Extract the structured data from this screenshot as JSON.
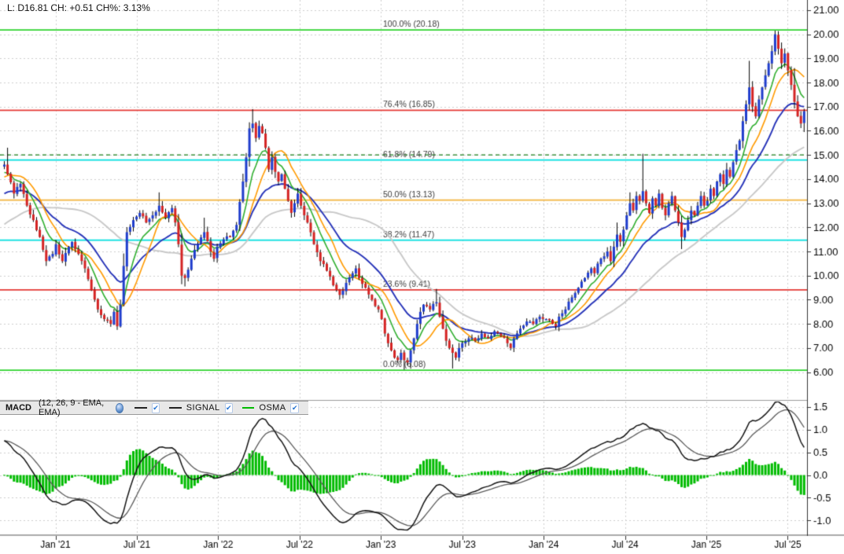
{
  "quote_bar": {
    "text": "L: D16.81 CH: +0.51 CH%: 3.13%",
    "last": "16.81",
    "change": "+0.51",
    "change_pct": "3.13%"
  },
  "indicator_bar": {
    "name": "MACD",
    "params": "(12, 26, 9 - EMA, EMA)",
    "settings_icon": "globe-icon",
    "check_glyph": "✔",
    "toggles": [
      {
        "label": "",
        "checked": true,
        "sample_color": "#222222"
      },
      {
        "label": "SIGNAL",
        "checked": true,
        "sample_color": "#222222"
      },
      {
        "label": "OSMA",
        "checked": true,
        "sample_color": "#00bb00"
      }
    ]
  },
  "price_axis": {
    "ticks": [
      "21.00",
      "20.00",
      "19.00",
      "18.00",
      "17.00",
      "16.00",
      "15.00",
      "14.00",
      "13.00",
      "12.00",
      "11.00",
      "10.00",
      "9.00",
      "8.00",
      "7.00",
      "6.00"
    ]
  },
  "macd_axis": {
    "ticks": [
      "1.5",
      "1.0",
      "0.5",
      "0.0",
      "-0.5",
      "-1.0"
    ]
  },
  "time_axis": {
    "ticks": [
      "Jan '21",
      "Jul '21",
      "Jan '22",
      "Jul '22",
      "Jan '23",
      "Jul '23",
      "Jan '24",
      "Jul '24",
      "Jan '25",
      "Jul '25"
    ]
  },
  "fibonacci": {
    "levels": [
      {
        "label": "100.0% (20.18)",
        "pct": "100.0%",
        "price": 20.18,
        "color": "#2fd32f"
      },
      {
        "label": "76.4% (16.85)",
        "pct": "76.4%",
        "price": 16.85,
        "color": "#e53935"
      },
      {
        "label": "61.8% (14.79)",
        "pct": "61.8%",
        "price": 14.79,
        "color": "#00dede"
      },
      {
        "label": "50.0% (13.13)",
        "pct": "50.0%",
        "price": 13.13,
        "color": "#f2b33d"
      },
      {
        "label": "38.2% (11.47)",
        "pct": "38.2%",
        "price": 11.47,
        "color": "#00dede"
      },
      {
        "label": "23.6% (9.41)",
        "pct": "23.6%",
        "price": 9.41,
        "color": "#e53935"
      },
      {
        "label": "0.0% (6.08)",
        "pct": "0.0%",
        "price": 6.08,
        "color": "#2fd32f"
      }
    ]
  },
  "levels": {
    "horizontal_line": {
      "price": 15.0,
      "color": "#1c801c",
      "style": "dashed"
    }
  },
  "chart_data": {
    "type": "candlestick",
    "timeframe": "weekly",
    "x_range": [
      "Oct 2020",
      "Sep 2025"
    ],
    "price_ylim": [
      4.88,
      21.42
    ],
    "macd_ylim": [
      -1.29,
      1.62
    ],
    "last_close": 16.81,
    "candles_count": 249,
    "candle_up_color": "#1e3ccc",
    "candle_down_color": "#d42222",
    "wick_color": "#000000",
    "close_keypoints": [
      [
        -45,
        9.8
      ],
      [
        -35,
        10.5
      ],
      [
        -25,
        11.6
      ],
      [
        -15,
        13.0
      ],
      [
        -5,
        14.2
      ],
      [
        0,
        14.6
      ],
      [
        1,
        14.2
      ],
      [
        3,
        13.4
      ],
      [
        5,
        13.8
      ],
      [
        7,
        12.9
      ],
      [
        9,
        12.3
      ],
      [
        11,
        11.6
      ],
      [
        13,
        10.6
      ],
      [
        15,
        10.9
      ],
      [
        16,
        11.3
      ],
      [
        18,
        10.6
      ],
      [
        20,
        11.2
      ],
      [
        21,
        11.4
      ],
      [
        23,
        10.9
      ],
      [
        25,
        10.3
      ],
      [
        27,
        9.4
      ],
      [
        29,
        8.6
      ],
      [
        31,
        8.2
      ],
      [
        33,
        8.0
      ],
      [
        34,
        8.5
      ],
      [
        35,
        7.9
      ],
      [
        36,
        8.8
      ],
      [
        37,
        10.4
      ],
      [
        38,
        11.8
      ],
      [
        40,
        12.3
      ],
      [
        42,
        12.6
      ],
      [
        44,
        12.2
      ],
      [
        46,
        12.5
      ],
      [
        48,
        12.9
      ],
      [
        50,
        12.4
      ],
      [
        52,
        12.8
      ],
      [
        53,
        12.2
      ],
      [
        54,
        11.3
      ],
      [
        55,
        10.0
      ],
      [
        56,
        9.9
      ],
      [
        58,
        10.7
      ],
      [
        60,
        11.3
      ],
      [
        62,
        11.8
      ],
      [
        64,
        11.0
      ],
      [
        65,
        10.7
      ],
      [
        66,
        11.2
      ],
      [
        68,
        11.5
      ],
      [
        70,
        11.6
      ],
      [
        72,
        12.1
      ],
      [
        74,
        13.9
      ],
      [
        75,
        14.9
      ],
      [
        76,
        16.1
      ],
      [
        77,
        16.3
      ],
      [
        78,
        15.7
      ],
      [
        79,
        16.2
      ],
      [
        80,
        15.9
      ],
      [
        81,
        15.3
      ],
      [
        82,
        14.4
      ],
      [
        83,
        14.9
      ],
      [
        84,
        14.3
      ],
      [
        85,
        13.9
      ],
      [
        86,
        14.2
      ],
      [
        87,
        13.6
      ],
      [
        88,
        13.1
      ],
      [
        89,
        12.6
      ],
      [
        90,
        13.0
      ],
      [
        91,
        13.4
      ],
      [
        92,
        12.9
      ],
      [
        94,
        12.2
      ],
      [
        96,
        11.3
      ],
      [
        98,
        10.6
      ],
      [
        100,
        10.2
      ],
      [
        102,
        9.6
      ],
      [
        104,
        9.2
      ],
      [
        106,
        9.7
      ],
      [
        108,
        10.1
      ],
      [
        109,
        10.3
      ],
      [
        110,
        9.9
      ],
      [
        112,
        9.5
      ],
      [
        114,
        9.0
      ],
      [
        116,
        8.6
      ],
      [
        117,
        8.2
      ],
      [
        118,
        7.6
      ],
      [
        119,
        7.2
      ],
      [
        120,
        6.9
      ],
      [
        121,
        6.6
      ],
      [
        122,
        6.5
      ],
      [
        123,
        6.8
      ],
      [
        124,
        6.5
      ],
      [
        125,
        6.4
      ],
      [
        126,
        6.9
      ],
      [
        127,
        7.4
      ],
      [
        128,
        8.0
      ],
      [
        129,
        8.5
      ],
      [
        130,
        8.8
      ],
      [
        132,
        8.6
      ],
      [
        134,
        8.9
      ],
      [
        135,
        8.3
      ],
      [
        136,
        7.8
      ],
      [
        137,
        7.3
      ],
      [
        138,
        7.0
      ],
      [
        139,
        6.8
      ],
      [
        140,
        6.6
      ],
      [
        141,
        7.0
      ],
      [
        142,
        7.2
      ],
      [
        144,
        7.4
      ],
      [
        146,
        7.3
      ],
      [
        148,
        7.6
      ],
      [
        150,
        7.4
      ],
      [
        152,
        7.7
      ],
      [
        154,
        7.5
      ],
      [
        156,
        7.2
      ],
      [
        157,
        7.0
      ],
      [
        158,
        7.4
      ],
      [
        160,
        7.8
      ],
      [
        162,
        8.1
      ],
      [
        164,
        8.0
      ],
      [
        166,
        8.3
      ],
      [
        168,
        8.2
      ],
      [
        170,
        8.0
      ],
      [
        171,
        7.9
      ],
      [
        172,
        8.3
      ],
      [
        174,
        8.6
      ],
      [
        176,
        9.1
      ],
      [
        178,
        9.5
      ],
      [
        180,
        9.9
      ],
      [
        182,
        10.3
      ],
      [
        183,
        10.1
      ],
      [
        184,
        10.5
      ],
      [
        186,
        10.8
      ],
      [
        187,
        11.0
      ],
      [
        188,
        10.6
      ],
      [
        189,
        11.2
      ],
      [
        190,
        11.7
      ],
      [
        191,
        11.4
      ],
      [
        192,
        11.9
      ],
      [
        193,
        12.5
      ],
      [
        194,
        13.0
      ],
      [
        195,
        12.7
      ],
      [
        196,
        13.3
      ],
      [
        197,
        13.1
      ],
      [
        198,
        13.5
      ],
      [
        199,
        13.0
      ],
      [
        200,
        12.6
      ],
      [
        201,
        13.2
      ],
      [
        202,
        12.9
      ],
      [
        203,
        13.4
      ],
      [
        204,
        12.8
      ],
      [
        205,
        12.5
      ],
      [
        206,
        13.0
      ],
      [
        207,
        13.3
      ],
      [
        208,
        12.7
      ],
      [
        209,
        12.2
      ],
      [
        210,
        11.6
      ],
      [
        211,
        11.9
      ],
      [
        212,
        12.3
      ],
      [
        213,
        12.7
      ],
      [
        214,
        12.5
      ],
      [
        215,
        12.9
      ],
      [
        216,
        13.3
      ],
      [
        217,
        12.9
      ],
      [
        218,
        13.1
      ],
      [
        219,
        13.6
      ],
      [
        220,
        13.3
      ],
      [
        221,
        13.9
      ],
      [
        222,
        14.2
      ],
      [
        223,
        13.8
      ],
      [
        224,
        14.4
      ],
      [
        225,
        14.1
      ],
      [
        226,
        14.7
      ],
      [
        227,
        15.2
      ],
      [
        228,
        15.6
      ],
      [
        229,
        16.4
      ],
      [
        230,
        17.1
      ],
      [
        231,
        17.8
      ],
      [
        232,
        17.0
      ],
      [
        233,
        16.6
      ],
      [
        234,
        17.3
      ],
      [
        235,
        17.8
      ],
      [
        236,
        18.3
      ],
      [
        237,
        18.8
      ],
      [
        238,
        19.3
      ],
      [
        239,
        20.0
      ],
      [
        240,
        19.4
      ],
      [
        241,
        18.8
      ],
      [
        242,
        19.2
      ],
      [
        243,
        18.5
      ],
      [
        244,
        17.9
      ],
      [
        245,
        17.2
      ],
      [
        246,
        16.6
      ],
      [
        247,
        16.3
      ],
      [
        248,
        16.81
      ]
    ],
    "wick_overrides": {
      "1": {
        "h": 15.3
      },
      "35": {
        "l": 7.75
      },
      "48": {
        "h": 13.45
      },
      "56": {
        "l": 9.55
      },
      "62": {
        "h": 12.4
      },
      "77": {
        "h": 16.9
      },
      "124": {
        "l": 6.1
      },
      "134": {
        "h": 9.45
      },
      "139": {
        "l": 6.15
      },
      "190": {
        "h": 12.2
      },
      "194": {
        "h": 13.45
      },
      "198": {
        "h": 15.05
      },
      "210": {
        "l": 11.1
      },
      "231": {
        "h": 18.9
      },
      "239": {
        "h": 20.15
      },
      "245": {
        "h": 18.6
      },
      "248": {
        "l": 15.95
      }
    },
    "moving_averages": [
      {
        "name": "fast-ema",
        "period": 8,
        "type": "ema",
        "color": "#2fae2f"
      },
      {
        "name": "mid-sma",
        "period": 12,
        "type": "sma",
        "color": "#ff9a00"
      },
      {
        "name": "slow-ema",
        "period": 24,
        "type": "ema",
        "color": "#2633b8"
      },
      {
        "name": "long-sma",
        "period": 45,
        "type": "sma",
        "color": "#c8c8c8"
      }
    ],
    "macd": {
      "fast": 12,
      "slow": 26,
      "signal": 9,
      "macd_color": "#141414",
      "signal_color": "#5a5a5a",
      "histogram_color": "#00bb00"
    }
  }
}
